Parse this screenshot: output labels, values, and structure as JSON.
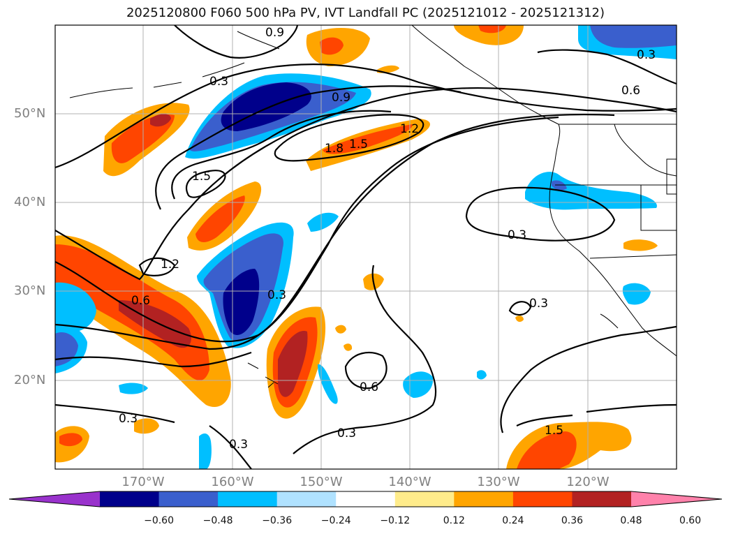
{
  "title": "2025120800 F060 500 hPa PV, IVT Landfall PC (2025121012 - 2025121312)",
  "latitude_labels": [
    {
      "label": "50°N",
      "deg": 50
    },
    {
      "label": "40°N",
      "deg": 40
    },
    {
      "label": "30°N",
      "deg": 30
    },
    {
      "label": "20°N",
      "deg": 20
    }
  ],
  "longitude_labels": [
    {
      "label": "170°W",
      "deg": -170
    },
    {
      "label": "160°W",
      "deg": -160
    },
    {
      "label": "150°W",
      "deg": -150
    },
    {
      "label": "140°W",
      "deg": -140
    },
    {
      "label": "130°W",
      "deg": -130
    },
    {
      "label": "120°W",
      "deg": -120
    }
  ],
  "contour_labels": [
    {
      "text": "0.3"
    },
    {
      "text": "0.9"
    },
    {
      "text": "1.8"
    },
    {
      "text": "1.5"
    },
    {
      "text": "1.2"
    },
    {
      "text": "1.5"
    },
    {
      "text": "1.2"
    },
    {
      "text": "0.6"
    },
    {
      "text": "0.3"
    },
    {
      "text": "0.3"
    },
    {
      "text": "0.6"
    },
    {
      "text": "0.3"
    },
    {
      "text": "0.3"
    },
    {
      "text": "0.6"
    },
    {
      "text": "0.3"
    },
    {
      "text": "0.3"
    },
    {
      "text": "0.3"
    },
    {
      "text": "0.9"
    }
  ],
  "colorbar": {
    "labels": [
      "−0.60",
      "−0.48",
      "−0.36",
      "−0.24",
      "−0.12",
      "0.12",
      "0.24",
      "0.36",
      "0.48",
      "0.60"
    ],
    "colors": [
      "#9932cc",
      "#00008b",
      "#3a5fcd",
      "#00bfff",
      "#b0e2ff",
      "#ffffff",
      "#ffec8b",
      "#ffa500",
      "#ff4500",
      "#b22222",
      "#ff82ab"
    ]
  },
  "colors": {
    "strong_negative": "#00008b",
    "mid_negative": "#3a5fcd",
    "weak_negative": "#00bfff",
    "weak_positive": "#ffa500",
    "mid_positive": "#ff4500",
    "strong_positive": "#b22222"
  }
}
